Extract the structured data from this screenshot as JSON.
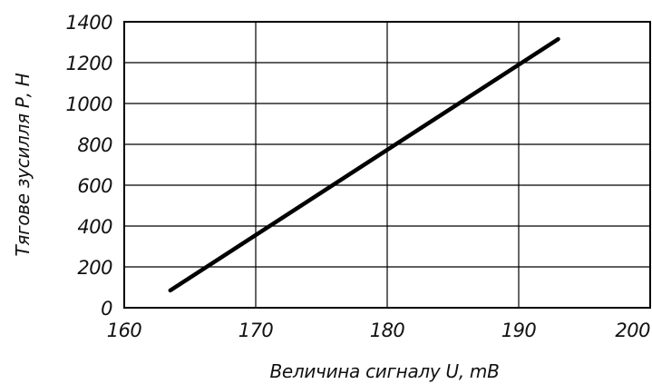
{
  "chart_data": {
    "type": "line",
    "xlabel": "Величина сигналу U, mВ",
    "ylabel": "Тягове зусилля Р, Н",
    "xlim": [
      160,
      200
    ],
    "ylim": [
      0,
      1400
    ],
    "x_ticks": [
      "160",
      "170",
      "180",
      "190",
      "200"
    ],
    "y_ticks": [
      "0",
      "200",
      "400",
      "600",
      "800",
      "1000",
      "1200",
      "1400"
    ],
    "grid": true,
    "series": [
      {
        "x": [
          163.5,
          193
        ],
        "y": [
          85,
          1315
        ]
      }
    ],
    "colors": {
      "line": "#000000",
      "grid": "#000000",
      "text": "#111111"
    }
  }
}
